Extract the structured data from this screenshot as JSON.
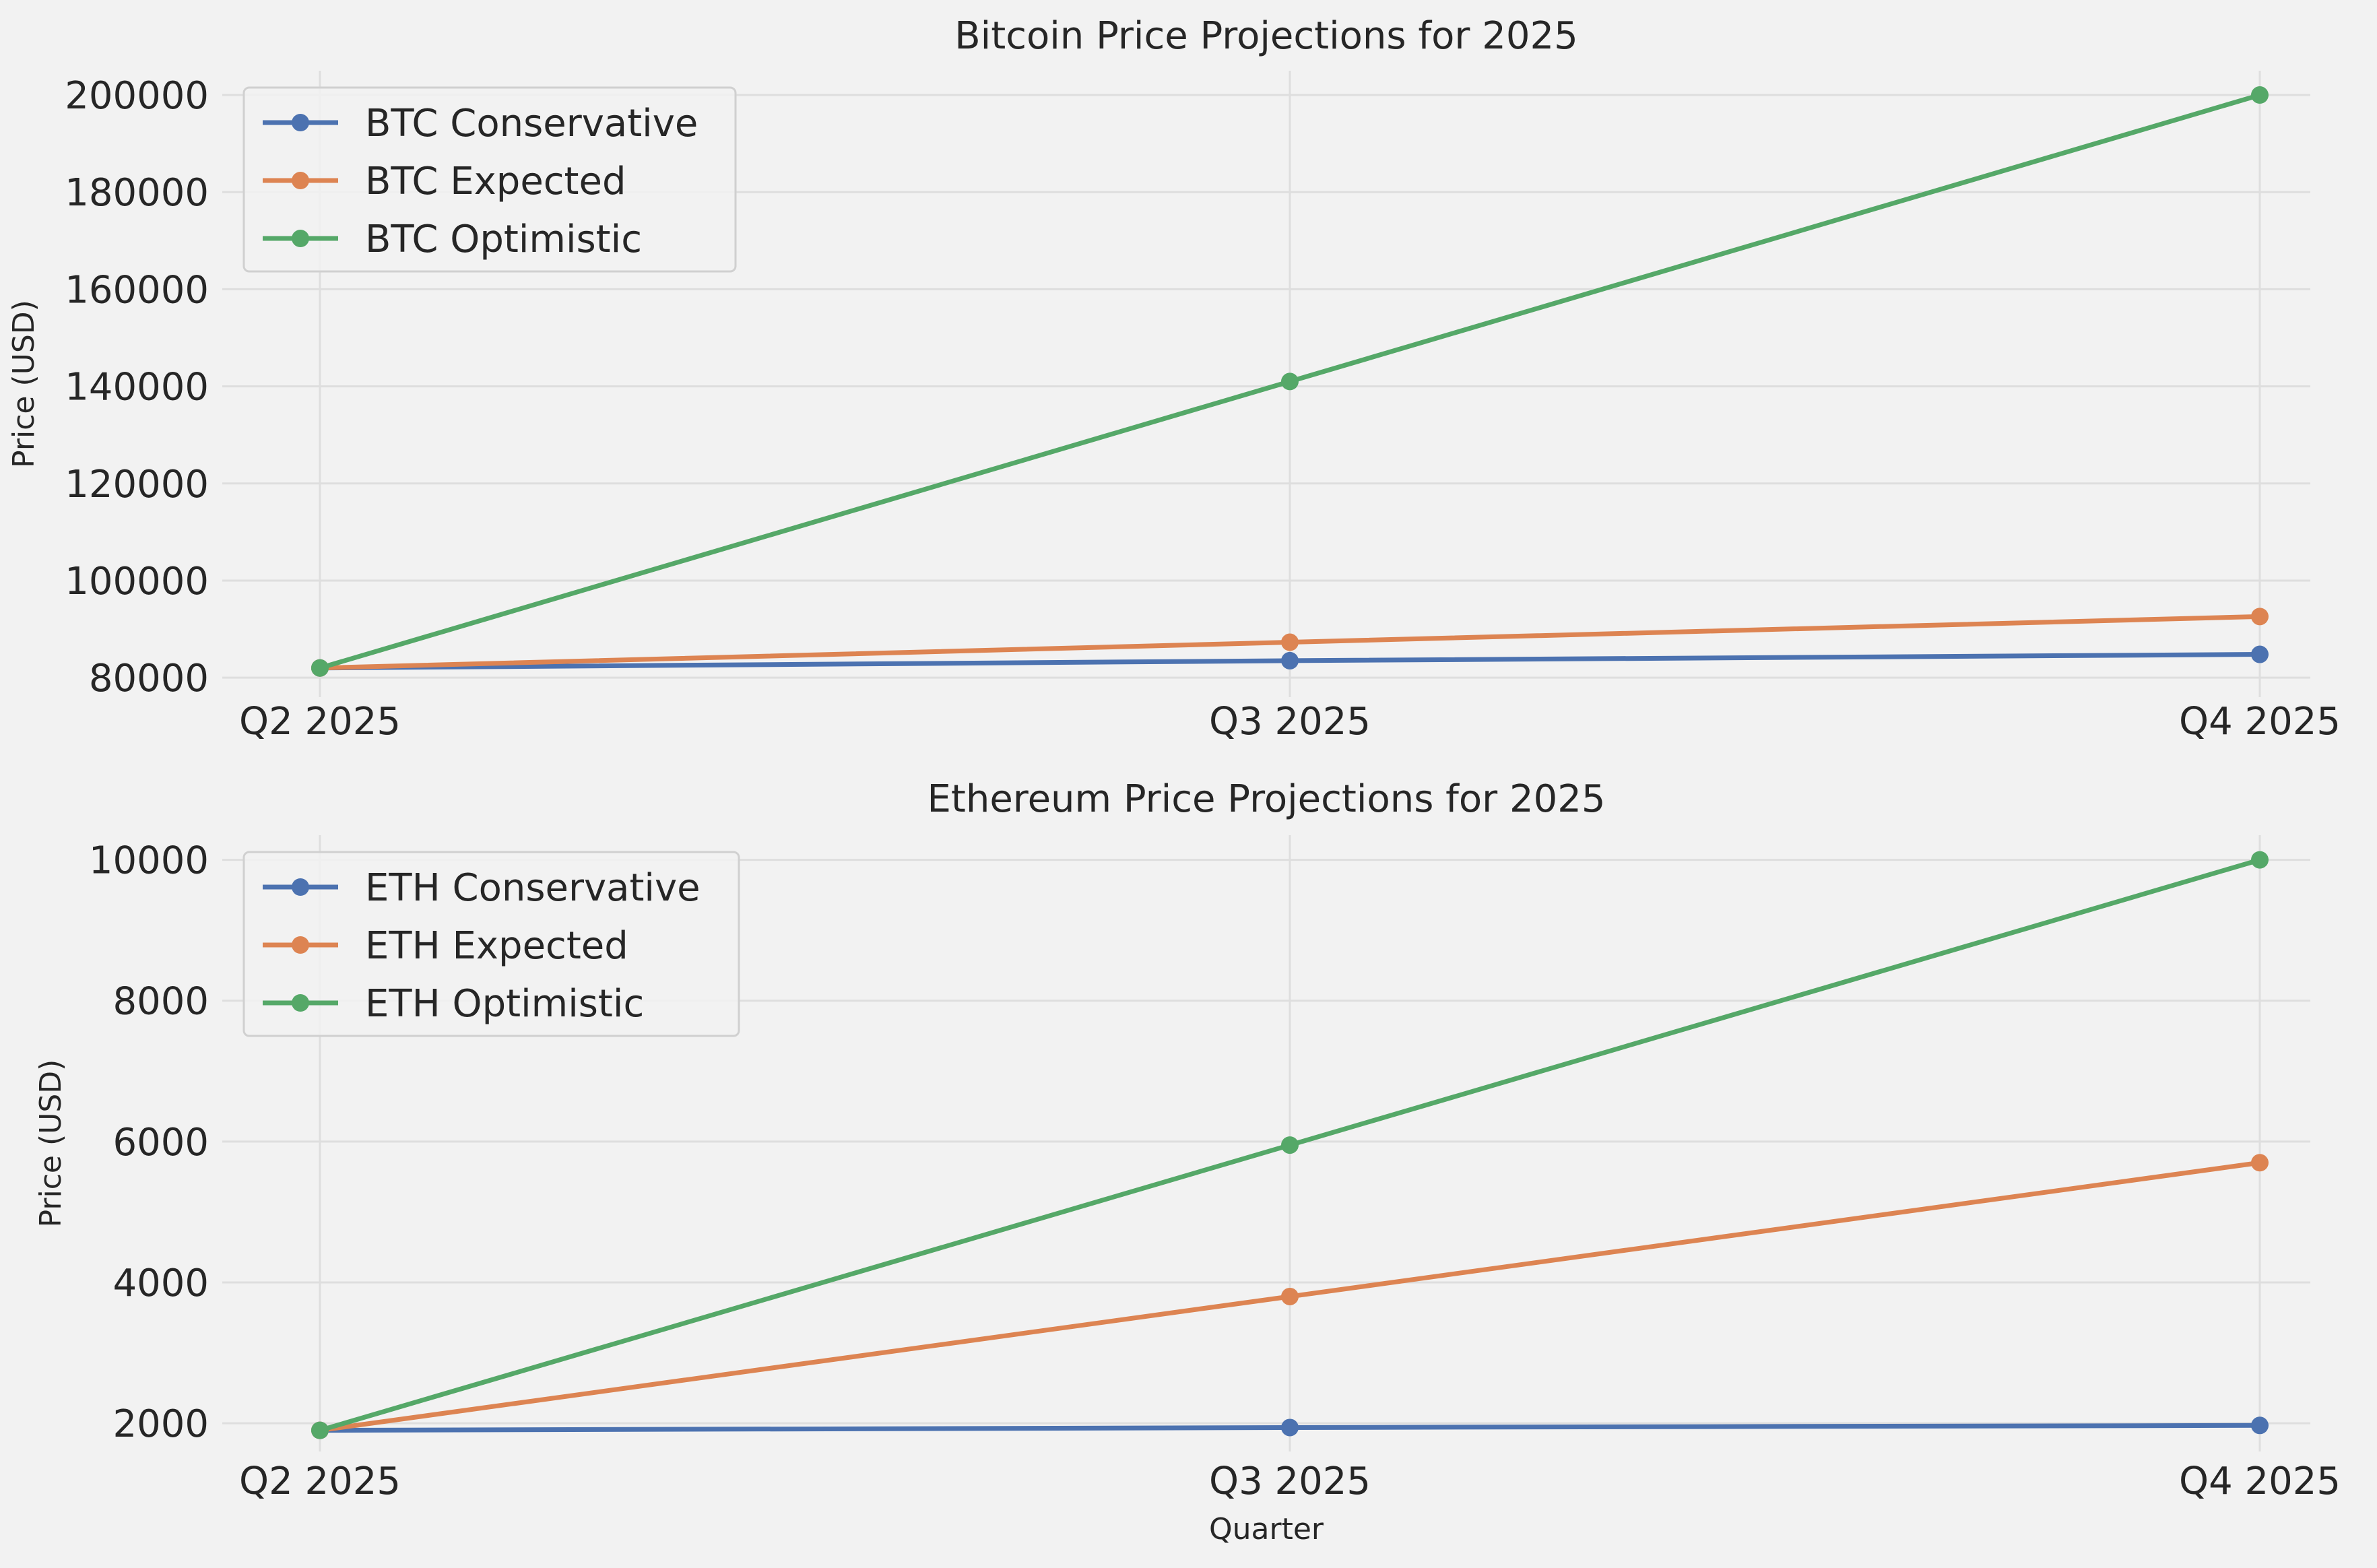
{
  "chart_data": [
    {
      "type": "line",
      "title": "Bitcoin Price Projections for 2025",
      "xlabel": "",
      "ylabel": "Price (USD)",
      "categories": [
        "Q2 2025",
        "Q3 2025",
        "Q4 2025"
      ],
      "ylim": [
        76000,
        205000
      ],
      "yticks": [
        80000,
        100000,
        120000,
        140000,
        160000,
        180000,
        200000
      ],
      "grid": true,
      "legend": "top-left",
      "series": [
        {
          "name": "BTC Conservative",
          "color": "#4c72b0",
          "values": [
            82000,
            83500,
            84800
          ]
        },
        {
          "name": "BTC Expected",
          "color": "#dd8452",
          "values": [
            82000,
            87300,
            92600
          ]
        },
        {
          "name": "BTC Optimistic",
          "color": "#55a868",
          "values": [
            82000,
            141000,
            200000
          ]
        }
      ]
    },
    {
      "type": "line",
      "title": "Ethereum Price Projections for 2025",
      "xlabel": "Quarter",
      "ylabel": "Price (USD)",
      "categories": [
        "Q2 2025",
        "Q3 2025",
        "Q4 2025"
      ],
      "ylim": [
        1600,
        10350
      ],
      "yticks": [
        2000,
        4000,
        6000,
        8000,
        10000
      ],
      "grid": true,
      "legend": "top-left",
      "series": [
        {
          "name": "ETH Conservative",
          "color": "#4c72b0",
          "values": [
            1900,
            1940,
            1970
          ]
        },
        {
          "name": "ETH Expected",
          "color": "#dd8452",
          "values": [
            1900,
            3800,
            5700
          ]
        },
        {
          "name": "ETH Optimistic",
          "color": "#55a868",
          "values": [
            1900,
            5950,
            10000
          ]
        }
      ]
    }
  ]
}
